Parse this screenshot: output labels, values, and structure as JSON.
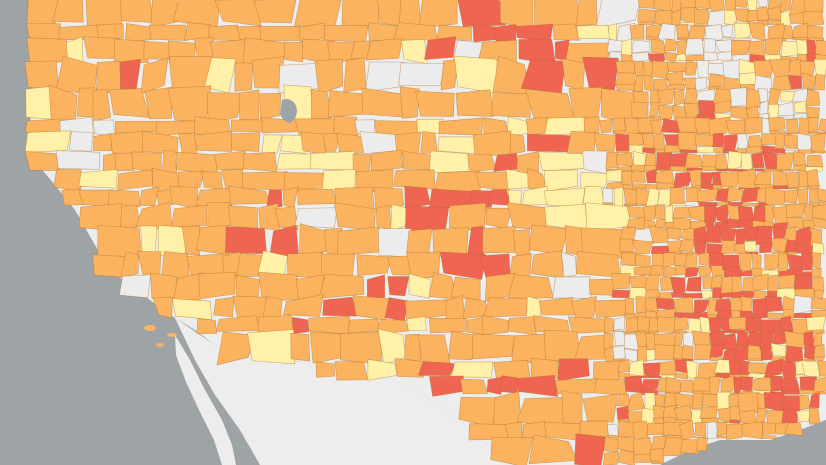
{
  "map": {
    "colors": {
      "ocean": "#9ea3a6",
      "land_background": "#ededed",
      "no_data": "#ececec",
      "level_low": "#fff2a8",
      "level_mid": "#fbb35f",
      "level_high": "#f06452",
      "county_border": "#c8894a"
    },
    "legend": []
  }
}
